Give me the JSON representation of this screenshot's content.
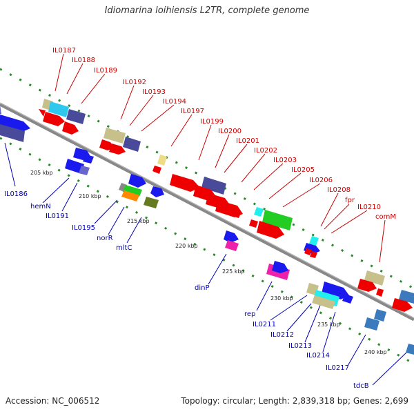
{
  "title": "Idiomarina loihiensis L2TR, complete genome",
  "accession": "Accession: NC_006512",
  "topology": "Topology: circular; Length: 2,839,318 bp; Genes: 2,699",
  "colors": {
    "backbone": "#8c8c8c",
    "dots": "#2a8a2a",
    "top_label": "#cc0000",
    "bottom_label": "#0000bb"
  },
  "top_labels": [
    "IL0187",
    "IL0188",
    "IL0189",
    "IL0192",
    "IL0193",
    "IL0194",
    "IL0197",
    "IL0199",
    "IL0200",
    "IL0201",
    "IL0202",
    "IL0203",
    "IL0205",
    "IL0206",
    "IL0208",
    "fpr",
    "IL0210",
    "comM"
  ],
  "bottom_labels": [
    "IL0186",
    "hemN",
    "IL0191",
    "IL0195",
    "norR",
    "mltC",
    "dinP",
    "rep",
    "IL0211",
    "IL0212",
    "IL0213",
    "IL0214",
    "IL0217",
    "tdcB"
  ],
  "ticks": [
    "205 kbp",
    "210 kbp",
    "215 kbp",
    "220 kbp",
    "225 kbp",
    "230 kbp",
    "235 kbp",
    "240 kbp"
  ]
}
